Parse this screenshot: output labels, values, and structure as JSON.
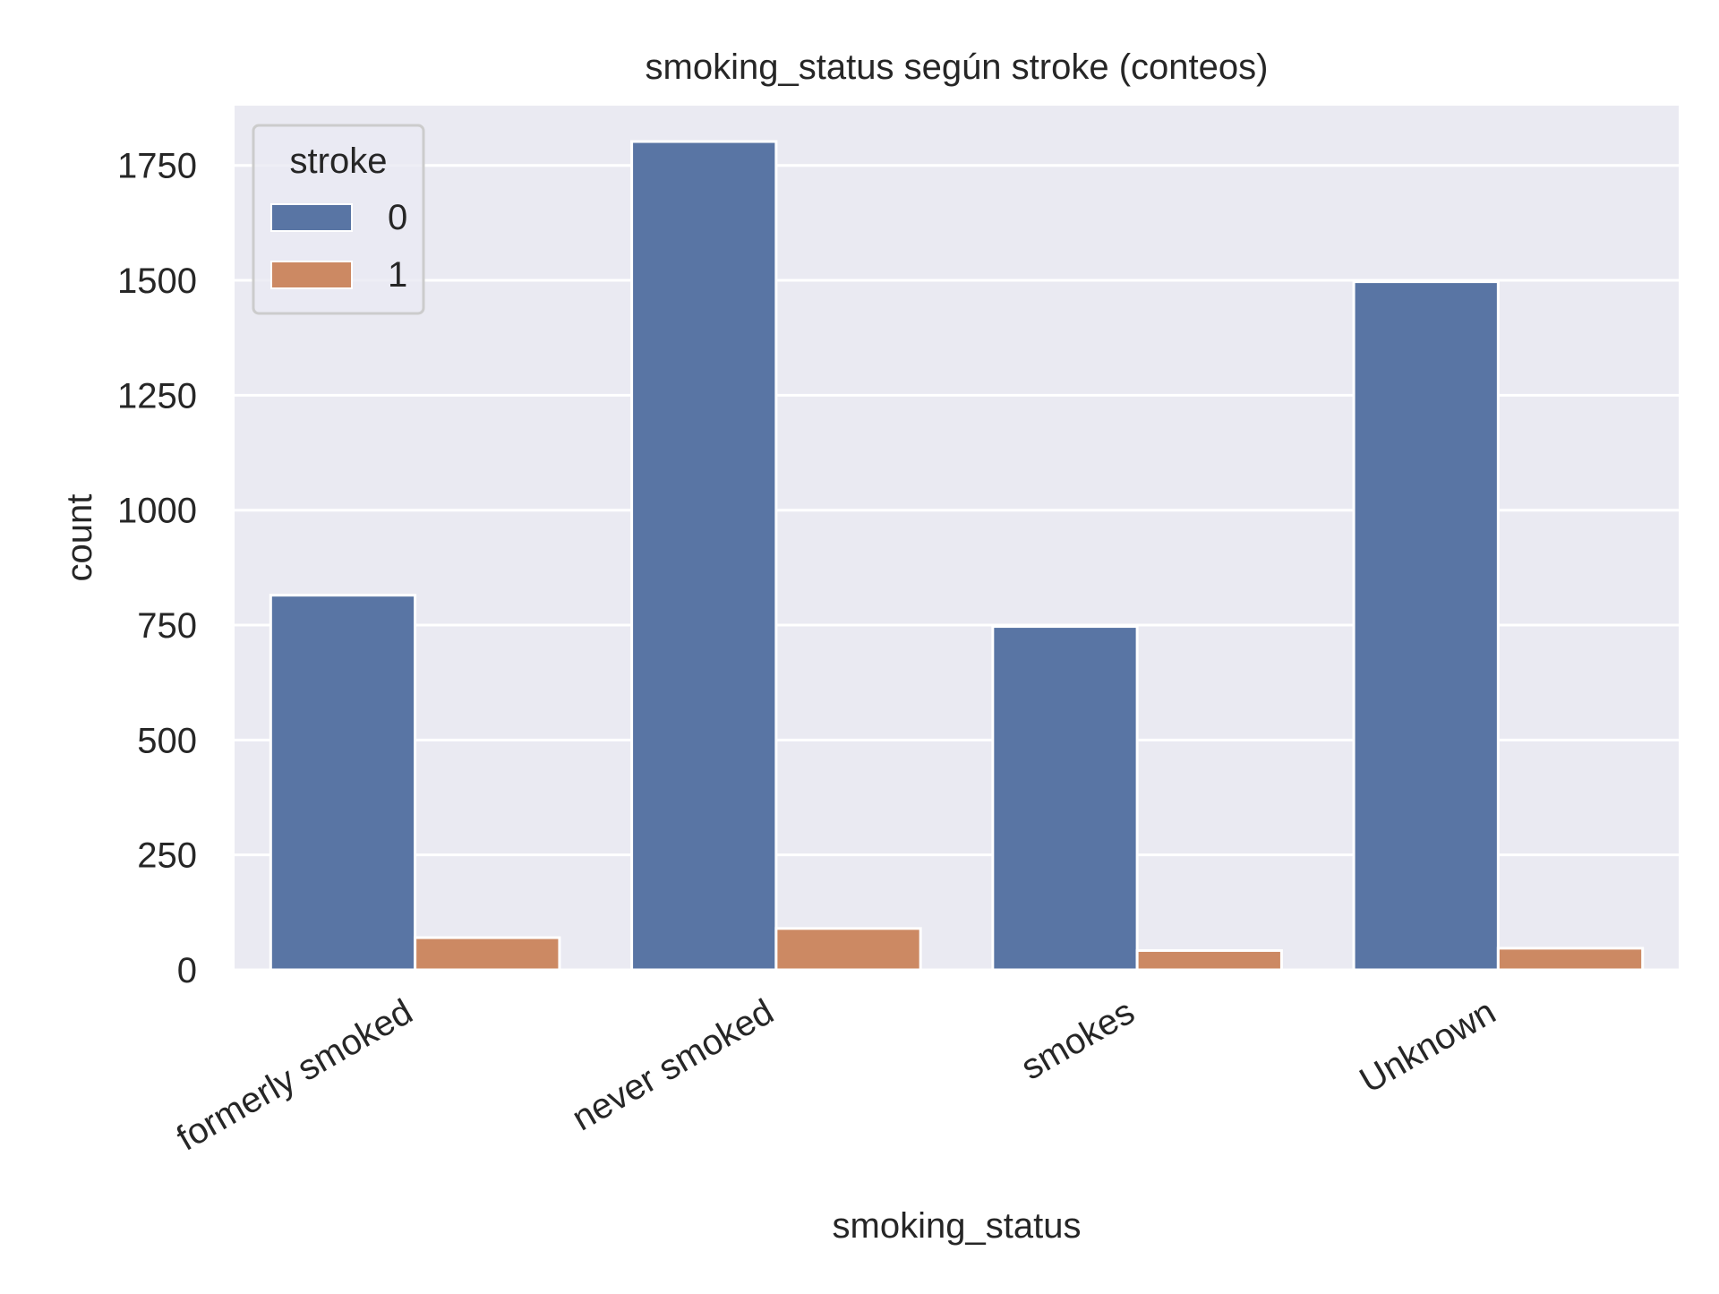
{
  "chart_data": {
    "type": "bar",
    "title": "smoking_status según stroke (conteos)",
    "xlabel": "smoking_status",
    "ylabel": "count",
    "categories": [
      "formerly smoked",
      "never smoked",
      "smokes",
      "Unknown"
    ],
    "series": [
      {
        "name": "0",
        "values": [
          815,
          1802,
          747,
          1497
        ],
        "color": "#5975a4"
      },
      {
        "name": "1",
        "values": [
          70,
          90,
          42,
          47
        ],
        "color": "#cc8963"
      }
    ],
    "ylim": [
      0,
      1880
    ],
    "yticks": [
      0,
      250,
      500,
      750,
      1000,
      1250,
      1500,
      1750
    ],
    "grid": true,
    "legend": {
      "title": "stroke",
      "placement": "top-left"
    },
    "colors": {
      "plot_background": "#eaeaf2",
      "grid": "#ffffff",
      "text": "#262626"
    }
  }
}
